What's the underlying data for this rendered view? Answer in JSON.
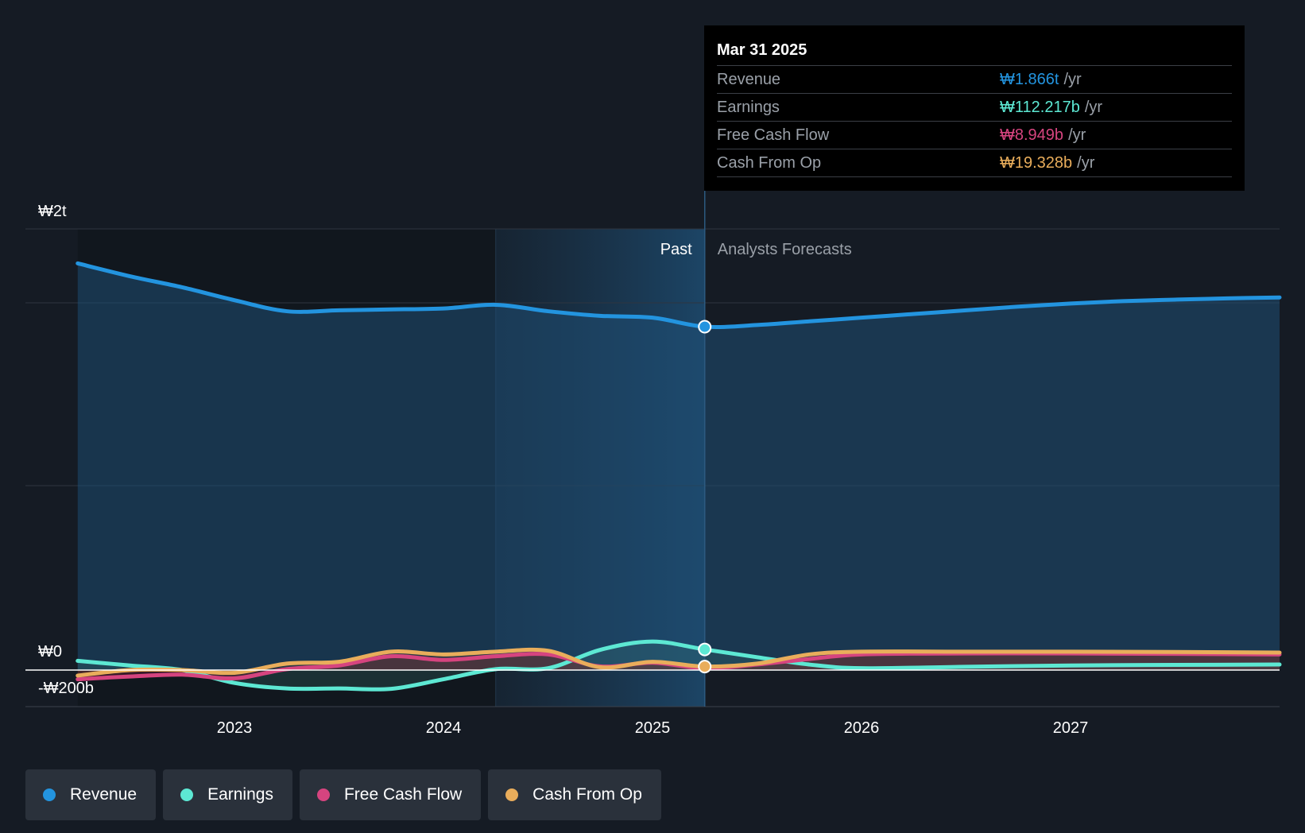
{
  "colors": {
    "background": "#151b24",
    "revenue": "#2394df",
    "earnings": "#5de8d3",
    "free_cash_flow": "#d6447f",
    "cash_from_op": "#e9ad5b",
    "grid": "#2e3540"
  },
  "tooltip": {
    "date": "Mar 31 2025",
    "rows": [
      {
        "name": "Revenue",
        "value": "₩1.866t",
        "unit": "/yr",
        "color": "#2394df"
      },
      {
        "name": "Earnings",
        "value": "₩112.217b",
        "unit": "/yr",
        "color": "#5de8d3"
      },
      {
        "name": "Free Cash Flow",
        "value": "₩8.949b",
        "unit": "/yr",
        "color": "#d6447f"
      },
      {
        "name": "Cash From Op",
        "value": "₩19.328b",
        "unit": "/yr",
        "color": "#e9ad5b"
      }
    ]
  },
  "regions": {
    "past_label": "Past",
    "forecast_label": "Analysts Forecasts"
  },
  "legend": [
    {
      "label": "Revenue",
      "color": "#2394df"
    },
    {
      "label": "Earnings",
      "color": "#5de8d3"
    },
    {
      "label": "Free Cash Flow",
      "color": "#d6447f"
    },
    {
      "label": "Cash From Op",
      "color": "#e9ad5b"
    }
  ],
  "chart_data": {
    "type": "line",
    "title": "",
    "xlabel": "",
    "ylabel": "",
    "y_tick_labels": [
      "₩2t",
      "₩0",
      "-₩200b"
    ],
    "y_ticks": [
      2400,
      0,
      -200
    ],
    "ylim": [
      -200,
      2400
    ],
    "x_tick_labels": [
      "2023",
      "2024",
      "2025",
      "2026",
      "2027"
    ],
    "x_ticks": [
      2023,
      2024,
      2025,
      2026,
      2027
    ],
    "xlim": [
      2022.0,
      2028.0
    ],
    "past_end": 2025.25,
    "highlight_start": 2024.25,
    "units": "₩ billions",
    "series": [
      {
        "name": "Revenue",
        "color": "#2394df",
        "x": [
          2022.25,
          2022.5,
          2022.75,
          2023.0,
          2023.25,
          2023.5,
          2023.75,
          2024.0,
          2024.25,
          2024.5,
          2024.75,
          2025.0,
          2025.25,
          2025.5,
          2025.75,
          2026.0,
          2026.25,
          2026.5,
          2026.75,
          2027.0,
          2027.25,
          2027.5,
          2027.75,
          2028.0
        ],
        "values": [
          2210,
          2140,
          2080,
          2010,
          1950,
          1955,
          1960,
          1965,
          1985,
          1950,
          1925,
          1915,
          1866,
          1875,
          1895,
          1915,
          1935,
          1955,
          1975,
          1992,
          2005,
          2013,
          2020,
          2025
        ]
      },
      {
        "name": "Earnings",
        "color": "#5de8d3",
        "x": [
          2022.25,
          2022.5,
          2022.75,
          2023.0,
          2023.25,
          2023.5,
          2023.75,
          2024.0,
          2024.25,
          2024.5,
          2024.75,
          2025.0,
          2025.25,
          2025.5,
          2025.75,
          2026.0,
          2026.5,
          2027.0,
          2027.5,
          2028.0
        ],
        "values": [
          50,
          25,
          0,
          -70,
          -100,
          -100,
          -102,
          -50,
          5,
          10,
          110,
          155,
          112,
          70,
          30,
          10,
          18,
          25,
          28,
          30
        ]
      },
      {
        "name": "Free Cash Flow",
        "color": "#d6447f",
        "x": [
          2022.25,
          2022.5,
          2022.75,
          2023.0,
          2023.25,
          2023.5,
          2023.75,
          2024.0,
          2024.25,
          2024.5,
          2024.75,
          2025.0,
          2025.25,
          2025.5,
          2025.75,
          2026.0,
          2026.5,
          2027.0,
          2027.5,
          2028.0
        ],
        "values": [
          -50,
          -35,
          -25,
          -45,
          5,
          25,
          75,
          55,
          75,
          85,
          20,
          40,
          9,
          30,
          60,
          85,
          90,
          90,
          88,
          85
        ]
      },
      {
        "name": "Cash From Op",
        "color": "#e9ad5b",
        "x": [
          2022.25,
          2022.5,
          2022.75,
          2023.0,
          2023.25,
          2023.5,
          2023.75,
          2024.0,
          2024.25,
          2024.5,
          2024.75,
          2025.0,
          2025.25,
          2025.5,
          2025.75,
          2026.0,
          2026.5,
          2027.0,
          2027.5,
          2028.0
        ],
        "values": [
          -30,
          0,
          0,
          -15,
          35,
          45,
          100,
          85,
          100,
          105,
          15,
          45,
          19,
          35,
          85,
          100,
          100,
          100,
          98,
          95
        ]
      }
    ],
    "highlight_point": {
      "x": 2025.25
    },
    "grid": true,
    "legend_position": "bottom-left"
  }
}
